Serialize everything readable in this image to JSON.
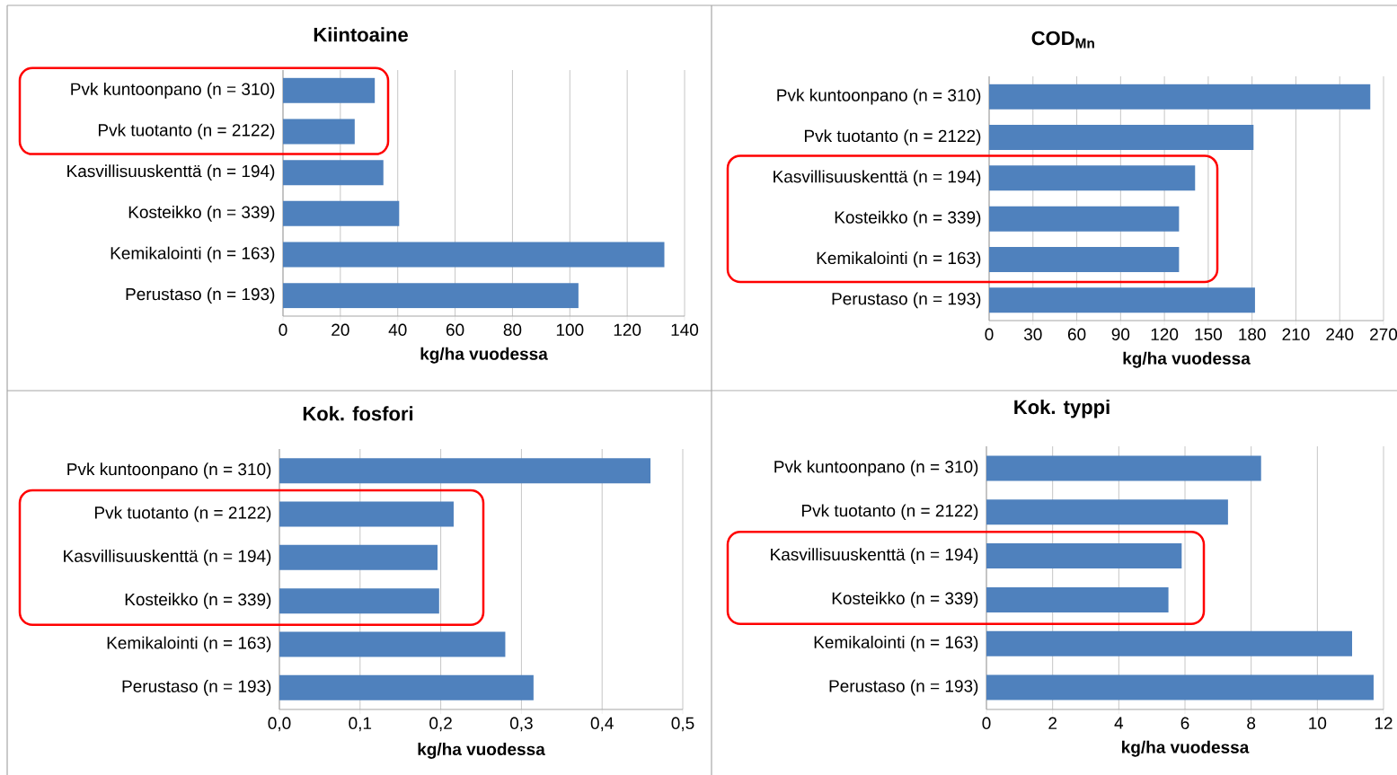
{
  "chart_data": [
    {
      "type": "bar",
      "orientation": "horizontal",
      "title": "Kiintoaine",
      "xlabel": "kg/ha vuodessa",
      "categories": [
        "Pvk kuntoonpano (n = 310)",
        "Pvk tuotanto (n = 2122)",
        "Kasvillisuuskenttä (n = 194)",
        "Kosteikko (n = 339)",
        "Kemikalointi (n = 163)",
        "Perustaso (n = 193)"
      ],
      "values": [
        32,
        25,
        35,
        40.5,
        133,
        103
      ],
      "color": "#4f81bd",
      "xlim": [
        0,
        140
      ],
      "xticks": [
        0,
        20,
        40,
        60,
        80,
        100,
        120,
        140
      ],
      "grid": "x"
    },
    {
      "type": "bar",
      "orientation": "horizontal",
      "title": "COD$_{Mn}$",
      "xlabel": "kg/ha vuodessa",
      "categories": [
        "Pvk kuntoonpano (n = 310)",
        "Pvk tuotanto (n = 2122)",
        "Kasvillisuuskenttä (n = 194)",
        "Kosteikko (n = 339)",
        "Kemikalointi (n = 163)",
        "Perustaso (n = 193)"
      ],
      "values": [
        261,
        181,
        141,
        130,
        130,
        182
      ],
      "color": "#4f81bd",
      "xlim": [
        0,
        270
      ],
      "xticks": [
        0,
        30,
        60,
        90,
        120,
        150,
        180,
        210,
        240,
        270
      ],
      "grid": "x"
    },
    {
      "type": "bar",
      "orientation": "horizontal",
      "title": "Kok. fosfori",
      "xlabel": "kg/ha vuodessa",
      "categories": [
        "Pvk kuntoonpano (n = 310)",
        "Pvk tuotanto (n = 2122)",
        "Kasvillisuuskenttä (n = 194)",
        "Kosteikko (n = 339)",
        "Kemikalointi (n = 163)",
        "Perustaso (n = 193)"
      ],
      "values": [
        0.46,
        0.216,
        0.196,
        0.198,
        0.28,
        0.315
      ],
      "color": "#4f81bd",
      "xlim": [
        0,
        0.5
      ],
      "xticks": [
        {
          "value": 0,
          "label": "0,0"
        },
        {
          "value": 0.1,
          "label": "0,1"
        },
        {
          "value": 0.2,
          "label": "0,2"
        },
        {
          "value": 0.3,
          "label": "0,3"
        },
        {
          "value": 0.4,
          "label": "0,4"
        },
        {
          "value": 0.5,
          "label": "0,5"
        }
      ],
      "grid": "x"
    },
    {
      "type": "bar",
      "orientation": "horizontal",
      "title": "Kok. typpi",
      "xlabel": "kg/ha vuodessa",
      "categories": [
        "Pvk kuntoonpano (n = 310)",
        "Pvk tuotanto (n = 2122)",
        "Kasvillisuuskenttä (n = 194)",
        "Kosteikko (n = 339)",
        "Kemikalointi (n = 163)",
        "Perustaso (n = 193)"
      ],
      "values": [
        8.3,
        7.3,
        5.9,
        5.5,
        11.05,
        11.7
      ],
      "color": "#4f81bd",
      "xlim": [
        0,
        12
      ],
      "xticks": [
        0,
        2,
        4,
        6,
        8,
        10,
        12
      ],
      "grid": "x"
    }
  ]
}
